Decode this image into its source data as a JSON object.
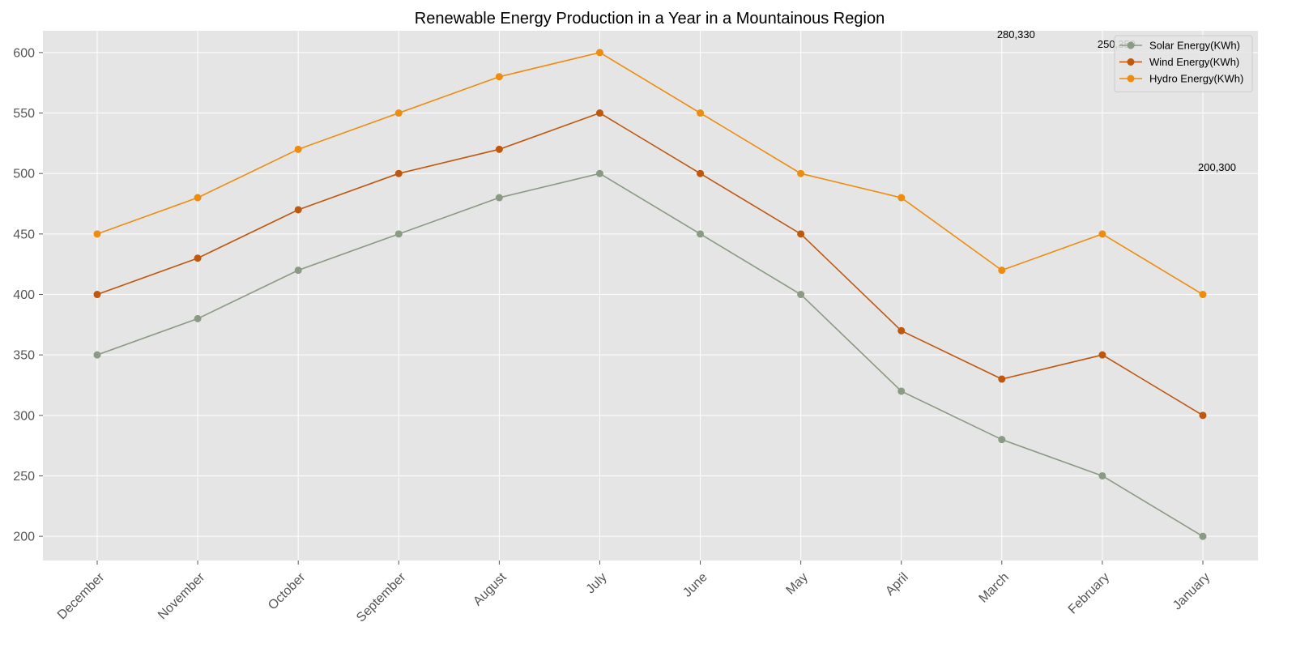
{
  "chart_data": {
    "type": "line",
    "title": "Renewable Energy Production in a Year in a Mountainous Region",
    "xlabel": "",
    "ylabel": "",
    "categories": [
      "December",
      "November",
      "October",
      "September",
      "August",
      "July",
      "June",
      "May",
      "April",
      "March",
      "February",
      "January"
    ],
    "series": [
      {
        "name": "Solar Energy(KWh)",
        "color": "#8a9a84",
        "values": [
          350,
          380,
          420,
          450,
          480,
          500,
          450,
          400,
          320,
          280,
          250,
          200
        ]
      },
      {
        "name": "Wind Energy(KWh)",
        "color": "#c0570e",
        "values": [
          400,
          430,
          470,
          500,
          520,
          550,
          500,
          450,
          370,
          330,
          350,
          300
        ]
      },
      {
        "name": "Hydro Energy(KWh)",
        "color": "#ed8c0e",
        "values": [
          450,
          480,
          520,
          550,
          580,
          600,
          550,
          500,
          480,
          420,
          450,
          400
        ]
      }
    ],
    "ylim": [
      180,
      618
    ],
    "yticks": [
      200,
      250,
      300,
      350,
      400,
      450,
      500,
      550,
      600
    ],
    "grid": true,
    "legend": "top-right",
    "annotations": [
      {
        "text": "280,330",
        "category": "March",
        "y": 612
      },
      {
        "text": "250,350",
        "category": "February",
        "y": 604
      },
      {
        "text": "200,300",
        "category": "January",
        "y": 502
      }
    ]
  }
}
